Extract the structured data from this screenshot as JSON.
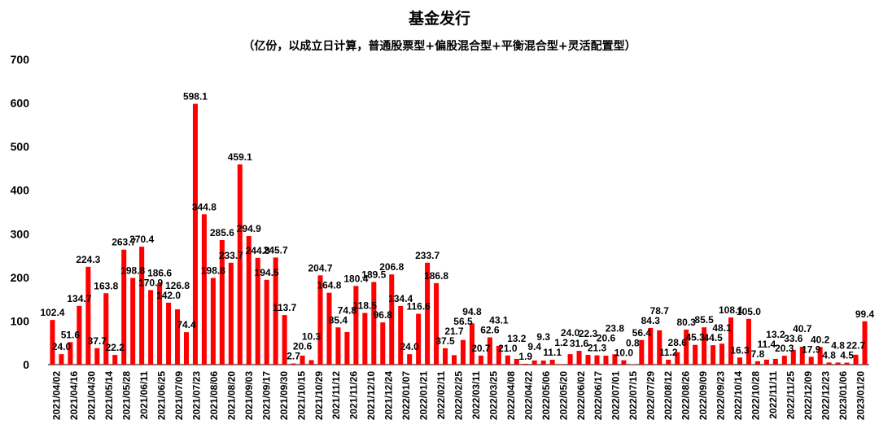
{
  "chart_data": {
    "type": "bar",
    "title": "基金发行",
    "subtitle": "（亿份，以成立日计算，普通股票型+偏股混合型+平衡混合型+灵活配置型）",
    "xlabel": "",
    "ylabel": "",
    "ylim": [
      0,
      700
    ],
    "yticks": [
      0,
      100,
      200,
      300,
      400,
      500,
      600,
      700
    ],
    "bar_color": "#ff0000",
    "grid": false,
    "legend": "none",
    "x_tick_labels": [
      "2021/04/02",
      "2021/04/16",
      "2021/04/30",
      "2021/05/14",
      "2021/05/28",
      "2021/06/11",
      "2021/06/25",
      "2021/07/09",
      "2021/07/23",
      "2021/08/06",
      "2021/08/20",
      "2021/09/03",
      "2021/09/17",
      "2021/09/30",
      "2021/10/15",
      "2021/10/29",
      "2021/11/12",
      "2021/11/26",
      "2021/12/10",
      "2021/12/24",
      "2022/01/07",
      "2022/01/21",
      "2022/02/11",
      "2022/02/25",
      "2022/03/11",
      "2022/03/25",
      "2022/04/08",
      "2022/04/22",
      "2022/05/06",
      "2022/05/20",
      "2022/06/02",
      "2022/06/17",
      "2022/07/01",
      "2022/07/15",
      "2022/07/29",
      "2022/08/12",
      "2022/08/26",
      "2022/09/09",
      "2022/09/23",
      "2022/10/14",
      "2022/10/28",
      "2022/11/11",
      "2022/11/25",
      "2022/12/09",
      "2022/12/23",
      "2023/01/06",
      "2023/01/20"
    ],
    "values": [
      102.4,
      24.0,
      51.6,
      134.7,
      224.3,
      37.7,
      163.8,
      22.2,
      263.7,
      198.8,
      270.4,
      170.9,
      186.6,
      142.0,
      126.8,
      74.4,
      598.1,
      344.8,
      198.8,
      285.6,
      233.7,
      459.1,
      294.9,
      244.8,
      194.5,
      245.7,
      113.7,
      2.7,
      20.6,
      10.3,
      204.7,
      164.8,
      85.4,
      74.8,
      180.4,
      118.5,
      189.5,
      96.8,
      206.8,
      134.4,
      24.0,
      116.6,
      233.7,
      186.8,
      37.5,
      21.7,
      56.5,
      94.8,
      20.7,
      62.6,
      43.1,
      21.0,
      13.2,
      1.9,
      9.4,
      9.3,
      11.1,
      1.2,
      24.0,
      31.6,
      22.3,
      21.3,
      20.6,
      23.8,
      10.0,
      0.8,
      56.4,
      84.3,
      78.7,
      11.2,
      28.6,
      80.3,
      45.3,
      85.5,
      44.5,
      48.1,
      108.1,
      16.3,
      105.0,
      7.8,
      11.4,
      13.2,
      20.3,
      33.6,
      40.7,
      17.9,
      40.2,
      4.8,
      4.8,
      4.5,
      22.7,
      99.4
    ],
    "labels": [
      "102.4",
      "24.0",
      "51.6",
      "134.7",
      "224.3",
      "37.7",
      "163.8",
      "22.2",
      "263.7",
      "198.8",
      "270.4",
      "170.9",
      "186.6",
      "142.0",
      "126.8",
      "74.4",
      "598.1",
      "344.8",
      "198.8",
      "285.6",
      "233.7",
      "459.1",
      "294.9",
      "244.8",
      "194.5",
      "245.7",
      "113.7",
      "2.7",
      "20.6",
      "10.3",
      "204.7",
      "164.8",
      "85.4",
      "74.8",
      "180.4",
      "118.5",
      "189.5",
      "96.8",
      "206.8",
      "134.4",
      "24.0",
      "116.6",
      "233.7",
      "186.8",
      "37.5",
      "21.7",
      "56.5",
      "94.8",
      "20.7",
      "62.6",
      "43.1",
      "21.0",
      "13.2",
      "1.9",
      "9.4",
      "9.3",
      "11.1",
      "1.2",
      "24.0",
      "31.6",
      "22.3",
      "21.3",
      "20.6",
      "23.8",
      "10.0",
      "0.8",
      "56.4",
      "84.3",
      "78.7",
      "11.2",
      "28.6",
      "80.3",
      "45.3",
      "85.5",
      "44.5",
      "48.1",
      "108.1",
      "16.3",
      "105.0",
      "7.8",
      "11.4",
      "13.2",
      "20.3",
      "33.6",
      "40.7",
      "17.9",
      "40.2",
      "4.8",
      "4.8",
      "4.5",
      "22.7",
      "99.4"
    ]
  }
}
